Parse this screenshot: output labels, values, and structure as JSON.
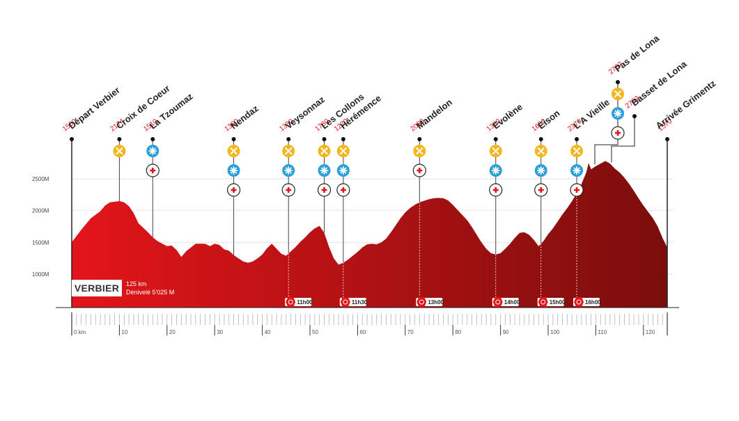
{
  "race": {
    "name": "VERBIER",
    "distance": "125 km",
    "elevation_gain": "Dénivelé 5'025 M"
  },
  "colors": {
    "profile_start": "#e3151a",
    "profile_end": "#7a0e0c",
    "food": "#f5b51c",
    "drink": "#2a9fd8",
    "medical": "#e3151a",
    "altitude_text": "#e3151a"
  },
  "chart_data": {
    "type": "area",
    "title": "",
    "xlabel": "",
    "ylabel": "",
    "xlim": [
      0,
      125
    ],
    "ylim": [
      500,
      3000
    ],
    "x_ticks": [
      {
        "value": 0,
        "label": "0 km"
      },
      {
        "value": 10,
        "label": "10"
      },
      {
        "value": 20,
        "label": "20"
      },
      {
        "value": 30,
        "label": "30"
      },
      {
        "value": 40,
        "label": "40"
      },
      {
        "value": 50,
        "label": "50"
      },
      {
        "value": 60,
        "label": "60"
      },
      {
        "value": 70,
        "label": "70"
      },
      {
        "value": 80,
        "label": "80"
      },
      {
        "value": 90,
        "label": "90"
      },
      {
        "value": 100,
        "label": "100"
      },
      {
        "value": 110,
        "label": "110"
      },
      {
        "value": 120,
        "label": "120"
      }
    ],
    "y_ticks": [
      {
        "value": 1000,
        "label": "1000M"
      },
      {
        "value": 1500,
        "label": "1500M"
      },
      {
        "value": 2000,
        "label": "2000M"
      },
      {
        "value": 2500,
        "label": "2500M"
      }
    ],
    "profile": [
      [
        0,
        1500
      ],
      [
        2,
        1700
      ],
      [
        4,
        1880
      ],
      [
        6,
        1990
      ],
      [
        7,
        2080
      ],
      [
        8,
        2130
      ],
      [
        9,
        2140
      ],
      [
        10,
        2150
      ],
      [
        11,
        2130
      ],
      [
        12,
        2070
      ],
      [
        13,
        1960
      ],
      [
        14,
        1800
      ],
      [
        16,
        1660
      ],
      [
        17,
        1580
      ],
      [
        18,
        1520
      ],
      [
        20,
        1440
      ],
      [
        21,
        1450
      ],
      [
        22,
        1380
      ],
      [
        23,
        1270
      ],
      [
        24,
        1360
      ],
      [
        26,
        1480
      ],
      [
        28,
        1480
      ],
      [
        29,
        1440
      ],
      [
        30,
        1480
      ],
      [
        31,
        1460
      ],
      [
        32,
        1390
      ],
      [
        33,
        1370
      ],
      [
        34,
        1300
      ],
      [
        35,
        1250
      ],
      [
        36,
        1200
      ],
      [
        37,
        1180
      ],
      [
        38,
        1200
      ],
      [
        39,
        1250
      ],
      [
        40,
        1310
      ],
      [
        41,
        1410
      ],
      [
        42,
        1480
      ],
      [
        43,
        1400
      ],
      [
        44,
        1320
      ],
      [
        45,
        1290
      ],
      [
        46,
        1360
      ],
      [
        47,
        1430
      ],
      [
        48,
        1510
      ],
      [
        49,
        1580
      ],
      [
        50,
        1660
      ],
      [
        51,
        1720
      ],
      [
        52,
        1760
      ],
      [
        53,
        1650
      ],
      [
        54,
        1430
      ],
      [
        55,
        1250
      ],
      [
        56,
        1150
      ],
      [
        57,
        1180
      ],
      [
        58,
        1230
      ],
      [
        59,
        1290
      ],
      [
        60,
        1350
      ],
      [
        61,
        1420
      ],
      [
        62,
        1470
      ],
      [
        63,
        1480
      ],
      [
        64,
        1470
      ],
      [
        65,
        1500
      ],
      [
        66,
        1560
      ],
      [
        67,
        1660
      ],
      [
        68,
        1770
      ],
      [
        69,
        1880
      ],
      [
        70,
        1970
      ],
      [
        71,
        2040
      ],
      [
        72,
        2090
      ],
      [
        73,
        2130
      ],
      [
        75,
        2180
      ],
      [
        76,
        2195
      ],
      [
        77,
        2200
      ],
      [
        78,
        2195
      ],
      [
        79,
        2160
      ],
      [
        80,
        2090
      ],
      [
        81,
        2010
      ],
      [
        82,
        1930
      ],
      [
        83,
        1850
      ],
      [
        84,
        1740
      ],
      [
        85,
        1620
      ],
      [
        86,
        1500
      ],
      [
        87,
        1400
      ],
      [
        88,
        1330
      ],
      [
        89,
        1310
      ],
      [
        90,
        1330
      ],
      [
        91,
        1400
      ],
      [
        92,
        1480
      ],
      [
        93,
        1570
      ],
      [
        94,
        1650
      ],
      [
        95,
        1660
      ],
      [
        96,
        1620
      ],
      [
        97,
        1540
      ],
      [
        98,
        1440
      ],
      [
        99,
        1520
      ],
      [
        100,
        1630
      ],
      [
        101,
        1720
      ],
      [
        102,
        1830
      ],
      [
        103,
        1940
      ],
      [
        104,
        2040
      ],
      [
        105,
        2150
      ],
      [
        106,
        2270
      ],
      [
        107,
        2420
      ],
      [
        108,
        2600
      ],
      [
        108.5,
        2750
      ],
      [
        109,
        2650
      ],
      [
        110,
        2700
      ],
      [
        111,
        2740
      ],
      [
        112,
        2780
      ],
      [
        113,
        2740
      ],
      [
        114,
        2660
      ],
      [
        115,
        2600
      ],
      [
        116,
        2520
      ],
      [
        117,
        2420
      ],
      [
        118,
        2310
      ],
      [
        119,
        2190
      ],
      [
        120,
        2080
      ],
      [
        121,
        1980
      ],
      [
        122,
        1880
      ],
      [
        123,
        1750
      ],
      [
        124,
        1570
      ],
      [
        125,
        1420
      ]
    ],
    "checkpoints": [
      {
        "name": "Départ Verbier",
        "altitude": "1500",
        "km": 0,
        "services": []
      },
      {
        "name": "Croix de Coeur",
        "altitude": "2174",
        "km": 10,
        "services": [
          "food"
        ]
      },
      {
        "name": "La Tzoumaz",
        "altitude": "1510",
        "km": 17,
        "services": [
          "drink",
          "medical"
        ]
      },
      {
        "name": "Nendaz",
        "altitude": "1360",
        "km": 34,
        "services": [
          "food",
          "drink",
          "medical"
        ]
      },
      {
        "name": "Veysonnaz",
        "altitude": "1330",
        "km": 45.5,
        "services": [
          "food",
          "drink",
          "medical"
        ]
      },
      {
        "name": "Les Collons",
        "altitude": "1780",
        "km": 53,
        "services": [
          "food",
          "drink",
          "medical"
        ]
      },
      {
        "name": "Hérémence",
        "altitude": "1270",
        "km": 57,
        "services": [
          "food",
          "drink",
          "medical"
        ]
      },
      {
        "name": "Mandelon",
        "altitude": "2030",
        "km": 73,
        "services": [
          "food",
          "medical"
        ]
      },
      {
        "name": "Evolène",
        "altitude": "1380",
        "km": 89,
        "services": [
          "food",
          "drink",
          "medical"
        ]
      },
      {
        "name": "Eison",
        "altitude": "1650",
        "km": 98.5,
        "services": [
          "food",
          "drink",
          "medical"
        ]
      },
      {
        "name": "L'A Vieille",
        "altitude": "2370",
        "km": 106,
        "services": [
          "food",
          "drink",
          "medical"
        ]
      },
      {
        "name": "Pas de Lona",
        "altitude": "2787",
        "km": 108.5,
        "services": [
          "food",
          "drink",
          "medical"
        ]
      },
      {
        "name": "Basset de Lona",
        "altitude": "2792",
        "km": 112,
        "services": []
      },
      {
        "name": "Arrivée Grimentz",
        "altitude": "1570",
        "km": 125,
        "services": []
      }
    ],
    "cutoffs": [
      {
        "km": 45.5,
        "time": "11h00"
      },
      {
        "km": 57,
        "time": "11h30"
      },
      {
        "km": 73,
        "time": "13h00"
      },
      {
        "km": 89,
        "time": "14h00"
      },
      {
        "km": 98.5,
        "time": "15h00"
      },
      {
        "km": 106,
        "time": "16h00"
      }
    ]
  }
}
